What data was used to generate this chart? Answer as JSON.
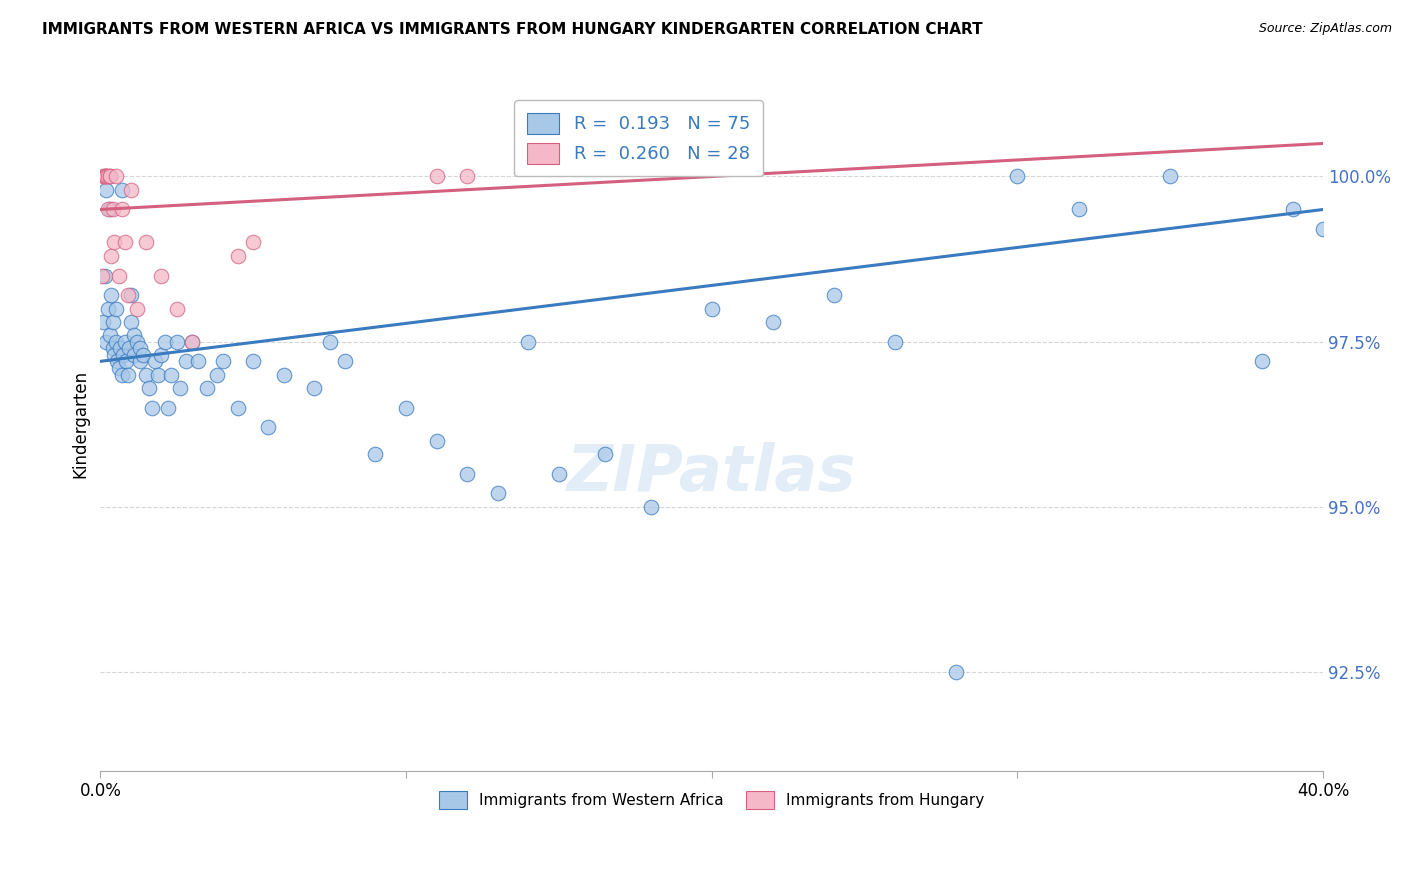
{
  "title": "IMMIGRANTS FROM WESTERN AFRICA VS IMMIGRANTS FROM HUNGARY KINDERGARTEN CORRELATION CHART",
  "source": "Source: ZipAtlas.com",
  "ylabel": "Kindergarten",
  "yticks": [
    92.5,
    95.0,
    97.5,
    100.0
  ],
  "ytick_labels": [
    "92.5%",
    "95.0%",
    "97.5%",
    "100.0%"
  ],
  "xlim": [
    0.0,
    40.0
  ],
  "ylim": [
    91.0,
    101.5
  ],
  "blue_color": "#a8c8e8",
  "pink_color": "#f4b8c8",
  "blue_line_color": "#3a7abf",
  "pink_line_color": "#d46080",
  "legend_blue_label": "R =  0.193   N = 75",
  "legend_pink_label": "R =  0.260   N = 28",
  "bottom_legend_blue": "Immigrants from Western Africa",
  "bottom_legend_pink": "Immigrants from Hungary",
  "blue_x": [
    0.1,
    0.15,
    0.2,
    0.2,
    0.25,
    0.3,
    0.3,
    0.35,
    0.4,
    0.4,
    0.45,
    0.5,
    0.5,
    0.55,
    0.6,
    0.65,
    0.7,
    0.7,
    0.75,
    0.8,
    0.85,
    0.9,
    0.95,
    1.0,
    1.0,
    1.1,
    1.1,
    1.2,
    1.3,
    1.3,
    1.4,
    1.5,
    1.6,
    1.7,
    1.8,
    1.9,
    2.0,
    2.1,
    2.2,
    2.3,
    2.5,
    2.6,
    2.8,
    3.0,
    3.2,
    3.5,
    3.8,
    4.0,
    4.5,
    5.0,
    5.5,
    6.0,
    7.0,
    7.5,
    8.0,
    9.0,
    10.0,
    11.0,
    12.0,
    13.0,
    14.0,
    15.0,
    16.5,
    18.0,
    20.0,
    22.0,
    24.0,
    26.0,
    28.0,
    30.0,
    32.0,
    35.0,
    38.0,
    39.0,
    40.0
  ],
  "blue_y": [
    97.8,
    98.5,
    97.5,
    99.8,
    98.0,
    97.6,
    99.5,
    98.2,
    97.4,
    97.8,
    97.3,
    97.5,
    98.0,
    97.2,
    97.1,
    97.4,
    97.0,
    99.8,
    97.3,
    97.5,
    97.2,
    97.0,
    97.4,
    97.8,
    98.2,
    97.3,
    97.6,
    97.5,
    97.2,
    97.4,
    97.3,
    97.0,
    96.8,
    96.5,
    97.2,
    97.0,
    97.3,
    97.5,
    96.5,
    97.0,
    97.5,
    96.8,
    97.2,
    97.5,
    97.2,
    96.8,
    97.0,
    97.2,
    96.5,
    97.2,
    96.2,
    97.0,
    96.8,
    97.5,
    97.2,
    95.8,
    96.5,
    96.0,
    95.5,
    95.2,
    97.5,
    95.5,
    95.8,
    95.0,
    98.0,
    97.8,
    98.2,
    97.5,
    92.5,
    100.0,
    99.5,
    100.0,
    97.2,
    99.5,
    99.2
  ],
  "pink_x": [
    0.05,
    0.1,
    0.15,
    0.15,
    0.2,
    0.2,
    0.25,
    0.25,
    0.3,
    0.3,
    0.35,
    0.4,
    0.45,
    0.5,
    0.6,
    0.7,
    0.8,
    0.9,
    1.0,
    1.2,
    1.5,
    2.0,
    2.5,
    3.0,
    4.5,
    5.0,
    11.0,
    12.0
  ],
  "pink_y": [
    98.5,
    100.0,
    100.0,
    100.0,
    100.0,
    100.0,
    100.0,
    99.5,
    100.0,
    100.0,
    98.8,
    99.5,
    99.0,
    100.0,
    98.5,
    99.5,
    99.0,
    98.2,
    99.8,
    98.0,
    99.0,
    98.5,
    98.0,
    97.5,
    98.8,
    99.0,
    100.0,
    100.0
  ],
  "blue_line_x": [
    0.0,
    40.0
  ],
  "blue_line_y": [
    97.2,
    99.5
  ],
  "pink_line_x": [
    0.0,
    40.0
  ],
  "pink_line_y": [
    99.5,
    100.5
  ]
}
